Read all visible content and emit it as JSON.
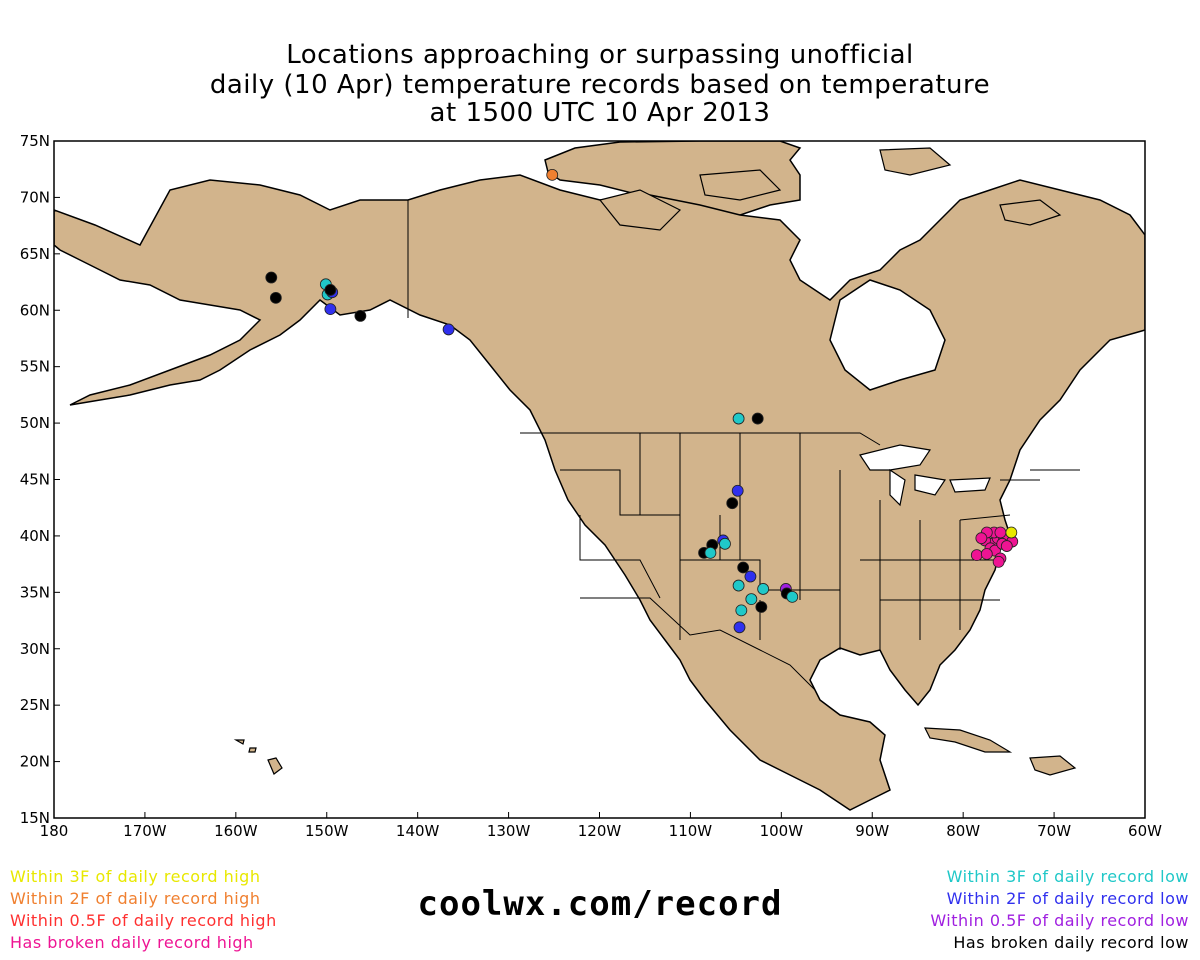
{
  "title": {
    "line1": "Locations approaching or surpassing unofficial",
    "line2": "daily (10 Apr) temperature records based on temperature",
    "line3": "at 1500 UTC 10 Apr 2013"
  },
  "axes": {
    "lat_ticks": [
      "75N",
      "70N",
      "65N",
      "60N",
      "55N",
      "50N",
      "45N",
      "40N",
      "35N",
      "30N",
      "25N",
      "20N",
      "15N"
    ],
    "lon_ticks": [
      "180",
      "170W",
      "160W",
      "150W",
      "140W",
      "130W",
      "120W",
      "110W",
      "100W",
      "90W",
      "80W",
      "70W",
      "60W"
    ],
    "lat_range": [
      15,
      75
    ],
    "lon_range": [
      -180,
      -60
    ]
  },
  "colors": {
    "land": "#d2b48c",
    "ocean": "#ffffff",
    "within3_high": "#e8e800",
    "within2_high": "#f08030",
    "within05_high": "#ff3030",
    "broken_high": "#ee1493",
    "within3_low": "#20c8c8",
    "within2_low": "#3030ee",
    "within05_low": "#a020e0",
    "broken_low": "#000000"
  },
  "legend_left": [
    {
      "label": "Within 3F of daily record high",
      "color": "#e8e800"
    },
    {
      "label": "Within 2F of daily record high",
      "color": "#f08030"
    },
    {
      "label": "Within 0.5F of daily record high",
      "color": "#ff3030"
    },
    {
      "label": "Has broken daily record high",
      "color": "#ee1493"
    }
  ],
  "legend_right": [
    {
      "label": "Within 3F of daily record low",
      "color": "#20c8c8"
    },
    {
      "label": "Within 2F of daily record low",
      "color": "#3030ee"
    },
    {
      "label": "Within 0.5F of daily record low",
      "color": "#a020e0"
    },
    {
      "label": "Has broken daily record low",
      "color": "#000000"
    }
  ],
  "site": "coolwx.com/record",
  "stations": [
    {
      "lon": -125.2,
      "lat": 72.0,
      "cat": "within2_high"
    },
    {
      "lon": -156.1,
      "lat": 62.9,
      "cat": "broken_low"
    },
    {
      "lon": -155.6,
      "lat": 61.1,
      "cat": "broken_low"
    },
    {
      "lon": -150.1,
      "lat": 62.3,
      "cat": "within3_low"
    },
    {
      "lon": -149.9,
      "lat": 61.4,
      "cat": "within3_low"
    },
    {
      "lon": -149.4,
      "lat": 61.6,
      "cat": "within2_low"
    },
    {
      "lon": -149.6,
      "lat": 61.8,
      "cat": "broken_low"
    },
    {
      "lon": -149.6,
      "lat": 60.1,
      "cat": "within2_low"
    },
    {
      "lon": -146.3,
      "lat": 59.5,
      "cat": "broken_low"
    },
    {
      "lon": -136.6,
      "lat": 58.3,
      "cat": "within2_low"
    },
    {
      "lon": -104.7,
      "lat": 50.4,
      "cat": "within3_low"
    },
    {
      "lon": -102.6,
      "lat": 50.4,
      "cat": "broken_low"
    },
    {
      "lon": -104.8,
      "lat": 44.0,
      "cat": "within2_low"
    },
    {
      "lon": -105.4,
      "lat": 42.9,
      "cat": "broken_low"
    },
    {
      "lon": -107.6,
      "lat": 39.2,
      "cat": "broken_low"
    },
    {
      "lon": -106.4,
      "lat": 39.6,
      "cat": "within2_low"
    },
    {
      "lon": -106.2,
      "lat": 39.3,
      "cat": "within3_low"
    },
    {
      "lon": -108.5,
      "lat": 38.5,
      "cat": "broken_low"
    },
    {
      "lon": -107.8,
      "lat": 38.5,
      "cat": "within3_low"
    },
    {
      "lon": -104.2,
      "lat": 37.2,
      "cat": "broken_low"
    },
    {
      "lon": -103.4,
      "lat": 36.4,
      "cat": "within2_low"
    },
    {
      "lon": -104.7,
      "lat": 35.6,
      "cat": "within3_low"
    },
    {
      "lon": -102.0,
      "lat": 35.3,
      "cat": "within3_low"
    },
    {
      "lon": -103.3,
      "lat": 34.4,
      "cat": "within3_low"
    },
    {
      "lon": -104.4,
      "lat": 33.4,
      "cat": "within3_low"
    },
    {
      "lon": -102.2,
      "lat": 33.7,
      "cat": "broken_low"
    },
    {
      "lon": -104.6,
      "lat": 31.9,
      "cat": "within2_low"
    },
    {
      "lon": -99.5,
      "lat": 35.3,
      "cat": "within05_low"
    },
    {
      "lon": -99.4,
      "lat": 34.9,
      "cat": "broken_low"
    },
    {
      "lon": -98.8,
      "lat": 34.6,
      "cat": "within3_low"
    },
    {
      "lon": -76.9,
      "lat": 39.3,
      "cat": "broken_high"
    },
    {
      "lon": -76.2,
      "lat": 39.8,
      "cat": "broken_high"
    },
    {
      "lon": -75.5,
      "lat": 39.7,
      "cat": "broken_high"
    },
    {
      "lon": -75.1,
      "lat": 39.9,
      "cat": "broken_high"
    },
    {
      "lon": -77.6,
      "lat": 39.6,
      "cat": "broken_high"
    },
    {
      "lon": -76.6,
      "lat": 40.3,
      "cat": "broken_high"
    },
    {
      "lon": -75.9,
      "lat": 40.3,
      "cat": "broken_high"
    },
    {
      "lon": -77.4,
      "lat": 40.3,
      "cat": "broken_high"
    },
    {
      "lon": -78.0,
      "lat": 39.8,
      "cat": "broken_high"
    },
    {
      "lon": -77.0,
      "lat": 38.9,
      "cat": "broken_high"
    },
    {
      "lon": -76.5,
      "lat": 38.7,
      "cat": "broken_high"
    },
    {
      "lon": -75.7,
      "lat": 39.3,
      "cat": "broken_high"
    },
    {
      "lon": -74.6,
      "lat": 39.5,
      "cat": "broken_high"
    },
    {
      "lon": -75.2,
      "lat": 39.1,
      "cat": "broken_high"
    },
    {
      "lon": -78.5,
      "lat": 38.3,
      "cat": "broken_high"
    },
    {
      "lon": -77.4,
      "lat": 38.4,
      "cat": "broken_high"
    },
    {
      "lon": -75.9,
      "lat": 38.0,
      "cat": "broken_high"
    },
    {
      "lon": -76.1,
      "lat": 37.7,
      "cat": "broken_high"
    },
    {
      "lon": -74.7,
      "lat": 40.3,
      "cat": "within3_high"
    }
  ]
}
